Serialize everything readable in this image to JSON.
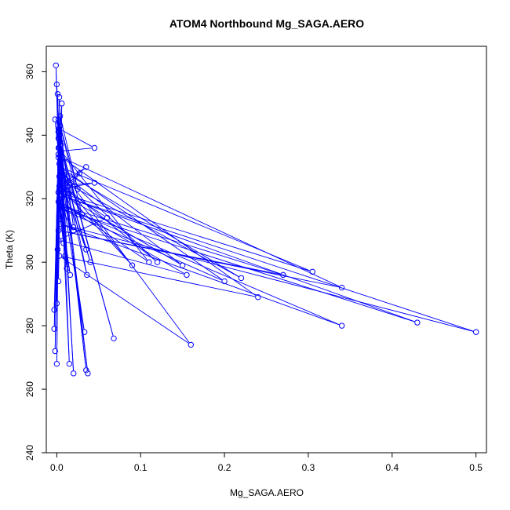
{
  "chart_data": {
    "type": "line",
    "title": "ATOM4 Northbound Mg_SAGA.AERO",
    "xlabel": "Mg_SAGA.AERO",
    "ylabel": "Theta (K)",
    "xlim": [
      -0.0125,
      0.5125
    ],
    "ylim": [
      240,
      368
    ],
    "x_ticks": [
      0.0,
      0.1,
      0.2,
      0.3,
      0.4,
      0.5
    ],
    "x_tick_labels": [
      "0.0",
      "0.1",
      "0.2",
      "0.3",
      "0.4",
      "0.5"
    ],
    "y_ticks": [
      240,
      260,
      280,
      300,
      320,
      340,
      360
    ],
    "y_tick_labels": [
      "240",
      "260",
      "280",
      "300",
      "320",
      "340",
      "360"
    ],
    "grid": false,
    "legend": "none",
    "series": [
      {
        "color": "#0000ff",
        "marker": "open-circle",
        "x": [
          0.004,
          0.12,
          0.006,
          0.15,
          0.002,
          0.305,
          0.004,
          0.2,
          0.003,
          0.43,
          0.005,
          0.5,
          0.004,
          0.34,
          0.003,
          0.27,
          0.002,
          0.34,
          0.006,
          0.24,
          0.003,
          0.16,
          0.005,
          0.22,
          0.004,
          0.09,
          0.003,
          0.06,
          0.002,
          0.155,
          0.004,
          0.11,
          0.005,
          0.045,
          0.003,
          0.037,
          0.002,
          0.068,
          0.004,
          0.035,
          0.003,
          0.02,
          0.005,
          0.015,
          0.002,
          0.036,
          0.004,
          0.035,
          0.003,
          0.033,
          0.002,
          0.04,
          0.005,
          0.03,
          0.004,
          0.02,
          0.003,
          0.01,
          0.002,
          0.025,
          0.004,
          -0.003,
          0.002,
          -0.002,
          0.003,
          0.0,
          0.002,
          -0.003,
          0.004,
          0.0,
          0.003,
          0.002,
          0.005,
          0.001,
          0.002,
          -0.001,
          0.003,
          0.0,
          0.004,
          0.001,
          0.003,
          -0.002,
          0.002,
          0.006,
          0.005,
          0.003,
          0.004,
          0.012,
          0.003,
          0.016,
          0.002,
          0.008,
          0.004,
          0.02,
          0.003,
          0.027,
          0.002,
          0.035,
          0.004,
          0.045,
          0.003
        ],
        "y": [
          325,
          300,
          328,
          299,
          322,
          297,
          330,
          294,
          317,
          281,
          321,
          278,
          312,
          280,
          318,
          296,
          310,
          292,
          333,
          289,
          302,
          274,
          329,
          295,
          326,
          299,
          324,
          314,
          307,
          296,
          319,
          300,
          335,
          336,
          342,
          265,
          339,
          276,
          338,
          266,
          340,
          265,
          337,
          268,
          341,
          296,
          332,
          304,
          327,
          278,
          334,
          300,
          331,
          315,
          343,
          311,
          344,
          302,
          345,
          323,
          346,
          279,
          341,
          272,
          340,
          268,
          336,
          285,
          338,
          287,
          339,
          294,
          335,
          304,
          333,
          362,
          331,
          356,
          329,
          353,
          336,
          345,
          334,
          350,
          332,
          352,
          329,
          298,
          320,
          296,
          319,
          306,
          321,
          310,
          318,
          328,
          322,
          330,
          324,
          325,
          323
        ]
      }
    ]
  }
}
